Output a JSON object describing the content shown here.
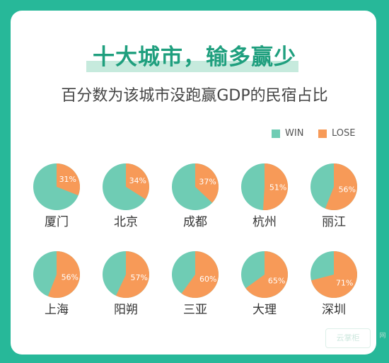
{
  "header": {
    "title": "十大城市，输多赢少",
    "subtitle": "百分数为该城市没跑赢GDP的民宿占比"
  },
  "colors": {
    "win": "#6fccb4",
    "lose": "#f79a58",
    "frame": "#27b899",
    "label": "#ffffff"
  },
  "legend": [
    {
      "label": "WIN",
      "color": "#6fccb4"
    },
    {
      "label": "LOSE",
      "color": "#f79a58"
    }
  ],
  "chart_data": {
    "type": "pie",
    "title": "十大城市，输多赢少",
    "subtitle": "百分数为该城市没跑赢GDP的民宿占比",
    "legend": [
      "WIN",
      "LOSE"
    ],
    "legend_position": "top-right",
    "series": [
      {
        "city": "厦门",
        "lose_pct": 31,
        "label": "31%"
      },
      {
        "city": "北京",
        "lose_pct": 34,
        "label": "34%"
      },
      {
        "city": "成都",
        "lose_pct": 37,
        "label": "37%"
      },
      {
        "city": "杭州",
        "lose_pct": 51,
        "label": "51%"
      },
      {
        "city": "丽江",
        "lose_pct": 56,
        "label": "56%"
      },
      {
        "city": "上海",
        "lose_pct": 56,
        "label": "56%"
      },
      {
        "city": "阳朔",
        "lose_pct": 57,
        "label": "57%"
      },
      {
        "city": "三亚",
        "lose_pct": 60,
        "label": "60%"
      },
      {
        "city": "大理",
        "lose_pct": 65,
        "label": "65%"
      },
      {
        "city": "深圳",
        "lose_pct": 71,
        "label": "71%"
      }
    ]
  },
  "watermark": {
    "text": "云掌柜",
    "side_text": "网"
  }
}
